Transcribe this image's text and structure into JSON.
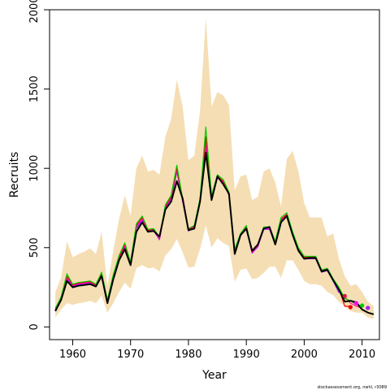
{
  "chart_data": {
    "type": "line",
    "title": "",
    "xlabel": "Year",
    "ylabel": "Recruits",
    "xlim": [
      1956,
      2013
    ],
    "ylim": [
      -80,
      2000
    ],
    "xticks": [
      "1960",
      "1970",
      "1980",
      "1990",
      "2000",
      "2010"
    ],
    "yticks": [
      "0",
      "500",
      "1000",
      "1500",
      "2000"
    ],
    "credit": "stockassessment.org, nwhl, r3089",
    "colors": {
      "band": "#f5deb3",
      "main": "#000000",
      "retro": [
        "#00cc00",
        "#ee0000",
        "#ff00ff",
        "#a020f0",
        "#ff1493",
        "#dc143c"
      ]
    },
    "years": [
      1957,
      1958,
      1959,
      1960,
      1961,
      1962,
      1963,
      1964,
      1965,
      1966,
      1967,
      1968,
      1969,
      1970,
      1971,
      1972,
      1973,
      1974,
      1975,
      1976,
      1977,
      1978,
      1979,
      1980,
      1981,
      1982,
      1983,
      1984,
      1985,
      1986,
      1987,
      1988,
      1989,
      1990,
      1991,
      1992,
      1993,
      1994,
      1995,
      1996,
      1997,
      1998,
      1999,
      2000,
      2001,
      2002,
      2003,
      2004,
      2005,
      2006,
      2007,
      2008,
      2009,
      2010,
      2011,
      2012
    ],
    "lower": [
      60,
      110,
      150,
      140,
      150,
      155,
      165,
      150,
      195,
      90,
      150,
      220,
      280,
      240,
      370,
      390,
      370,
      375,
      350,
      450,
      490,
      555,
      470,
      375,
      380,
      490,
      640,
      500,
      560,
      530,
      510,
      285,
      360,
      370,
      300,
      310,
      340,
      380,
      380,
      310,
      420,
      420,
      360,
      290,
      270,
      270,
      260,
      220,
      200,
      160,
      135,
      100,
      90,
      90,
      60,
      50
    ],
    "upper": [
      220,
      310,
      540,
      440,
      460,
      475,
      495,
      460,
      600,
      260,
      480,
      680,
      830,
      700,
      1000,
      1080,
      980,
      990,
      960,
      1200,
      1310,
      1560,
      1390,
      1050,
      1080,
      1360,
      1950,
      1390,
      1480,
      1460,
      1400,
      860,
      950,
      960,
      800,
      820,
      980,
      1000,
      910,
      760,
      1060,
      1110,
      980,
      780,
      690,
      690,
      690,
      570,
      590,
      430,
      320,
      260,
      270,
      220,
      160,
      130
    ],
    "series": [
      {
        "values": [
          100,
          170,
          290,
          250,
          260,
          265,
          270,
          255,
          320,
          150,
          300,
          420,
          490,
          390,
          600,
          660,
          600,
          605,
          570,
          740,
          790,
          920,
          810,
          610,
          620,
          790,
          1100,
          800,
          950,
          900,
          840,
          460,
          580,
          620,
          480,
          520,
          620,
          630,
          520,
          660,
          700,
          580,
          480,
          430,
          435,
          435,
          350,
          360,
          295,
          235,
          160,
          165,
          155,
          110,
          90,
          80
        ]
      },
      {
        "values": [
          115,
          190,
          335,
          270,
          280,
          285,
          290,
          270,
          345,
          170,
          330,
          450,
          530,
          410,
          650,
          700,
          615,
          620,
          565,
          770,
          830,
          1020,
          810,
          620,
          640,
          810,
          1260,
          830,
          960,
          930,
          850,
          490,
          590,
          640,
          480,
          520,
          630,
          630,
          540,
          690,
          720,
          600,
          500,
          445,
          445,
          445,
          360,
          370,
          305,
          250,
          180,
          165,
          140
        ]
      },
      {
        "values": [
          110,
          185,
          320,
          265,
          275,
          280,
          285,
          265,
          335,
          165,
          320,
          440,
          520,
          405,
          640,
          690,
          610,
          615,
          560,
          760,
          820,
          1000,
          800,
          615,
          635,
          800,
          1200,
          820,
          950,
          920,
          840,
          470,
          585,
          630,
          475,
          515,
          625,
          625,
          530,
          680,
          710,
          590,
          495,
          440,
          440,
          440,
          355,
          365,
          300,
          245,
          130,
          130
        ]
      },
      {
        "values": [
          105,
          180,
          310,
          260,
          270,
          275,
          280,
          260,
          330,
          160,
          315,
          435,
          510,
          400,
          630,
          680,
          605,
          610,
          555,
          755,
          810,
          990,
          795,
          610,
          630,
          795,
          1150,
          815,
          945,
          915,
          835,
          465,
          580,
          625,
          470,
          510,
          620,
          620,
          525,
          675,
          705,
          585,
          490,
          435,
          435,
          435,
          350,
          360,
          295,
          240,
          175
        ]
      },
      {
        "values": [
          100,
          175,
          300,
          255,
          265,
          270,
          275,
          255,
          325,
          155,
          310,
          430,
          500,
          395,
          620,
          670,
          600,
          605,
          550,
          750,
          800,
          980,
          790,
          605,
          625,
          790,
          1120,
          810,
          940,
          910,
          830,
          460,
          575,
          620,
          465,
          505,
          615,
          615,
          520,
          670,
          700,
          580,
          485,
          430,
          430,
          430,
          345,
          355,
          290,
          215
        ]
      },
      {
        "values": [
          120,
          180,
          305,
          260,
          270,
          275,
          280,
          260,
          330,
          160,
          315,
          435,
          505,
          400,
          625,
          675,
          600,
          610,
          560,
          755,
          805,
          985,
          795,
          610,
          630,
          795,
          1170,
          815,
          945,
          915,
          835,
          465,
          578,
          622,
          468,
          508,
          618,
          618,
          522,
          672,
          702,
          582,
          488,
          432,
          432,
          432,
          348,
          358,
          292,
          235,
          190,
          150,
          130,
          120
        ]
      }
    ],
    "terminal_points": [
      {
        "x": 2007,
        "y": 195,
        "color": "#dc143c"
      },
      {
        "x": 2008,
        "y": 125,
        "color": "#ee0000"
      },
      {
        "x": 2009,
        "y": 150,
        "color": "#ff00ff"
      },
      {
        "x": 2010,
        "y": 135,
        "color": "#00cc00"
      },
      {
        "x": 2011,
        "y": 120,
        "color": "#a020f0"
      }
    ]
  }
}
